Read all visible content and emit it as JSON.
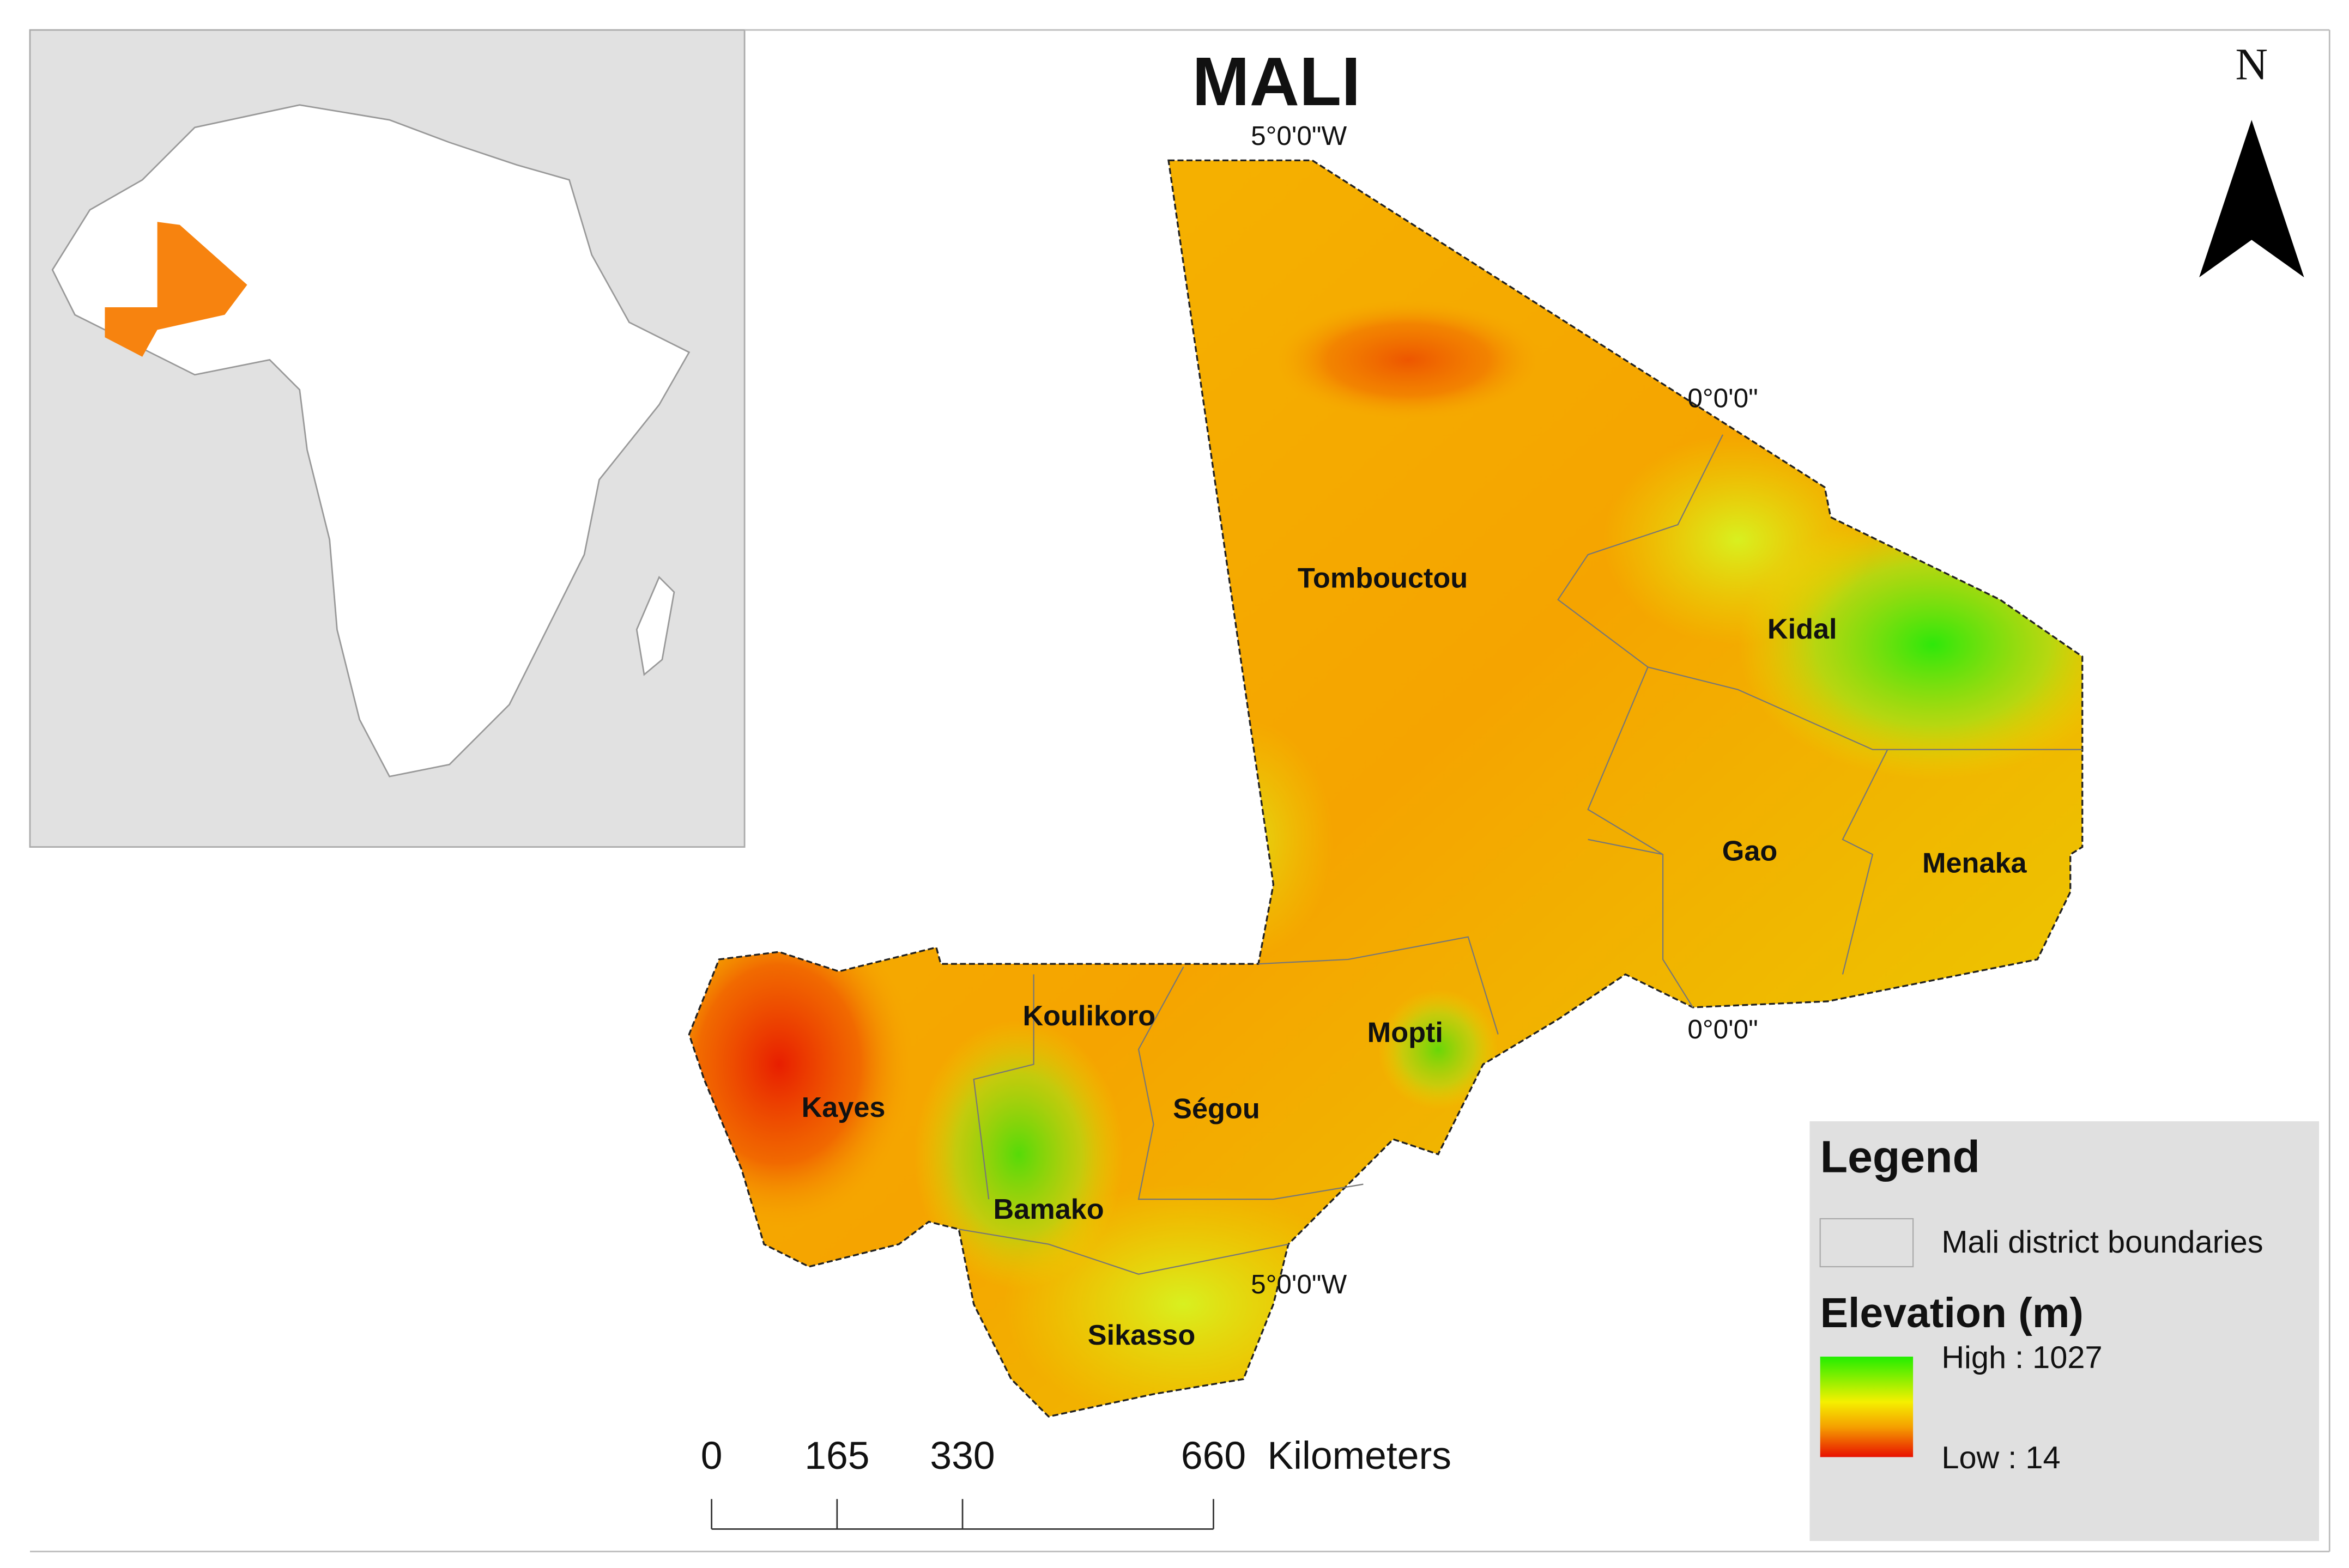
{
  "title": "MALI",
  "north": "N",
  "graticule": [
    "5°0'0\"W",
    "0°0'0\"",
    "0°0'0\"",
    "5°0'0\"W"
  ],
  "regions": [
    "Tombouctou",
    "Kidal",
    "Gao",
    "Menaka",
    "Koulikoro",
    "Mopti",
    "Kayes",
    "Ségou",
    "Bamako",
    "Sikasso"
  ],
  "scale_bar": {
    "ticks": [
      0,
      165,
      330,
      660
    ],
    "unit": "Kilometers"
  },
  "legend": {
    "title": "Legend",
    "boundaries": "Mali district boundaries",
    "elevation_title": "Elevation (m)",
    "high": "High : 1027",
    "low": "Low : 14"
  }
}
